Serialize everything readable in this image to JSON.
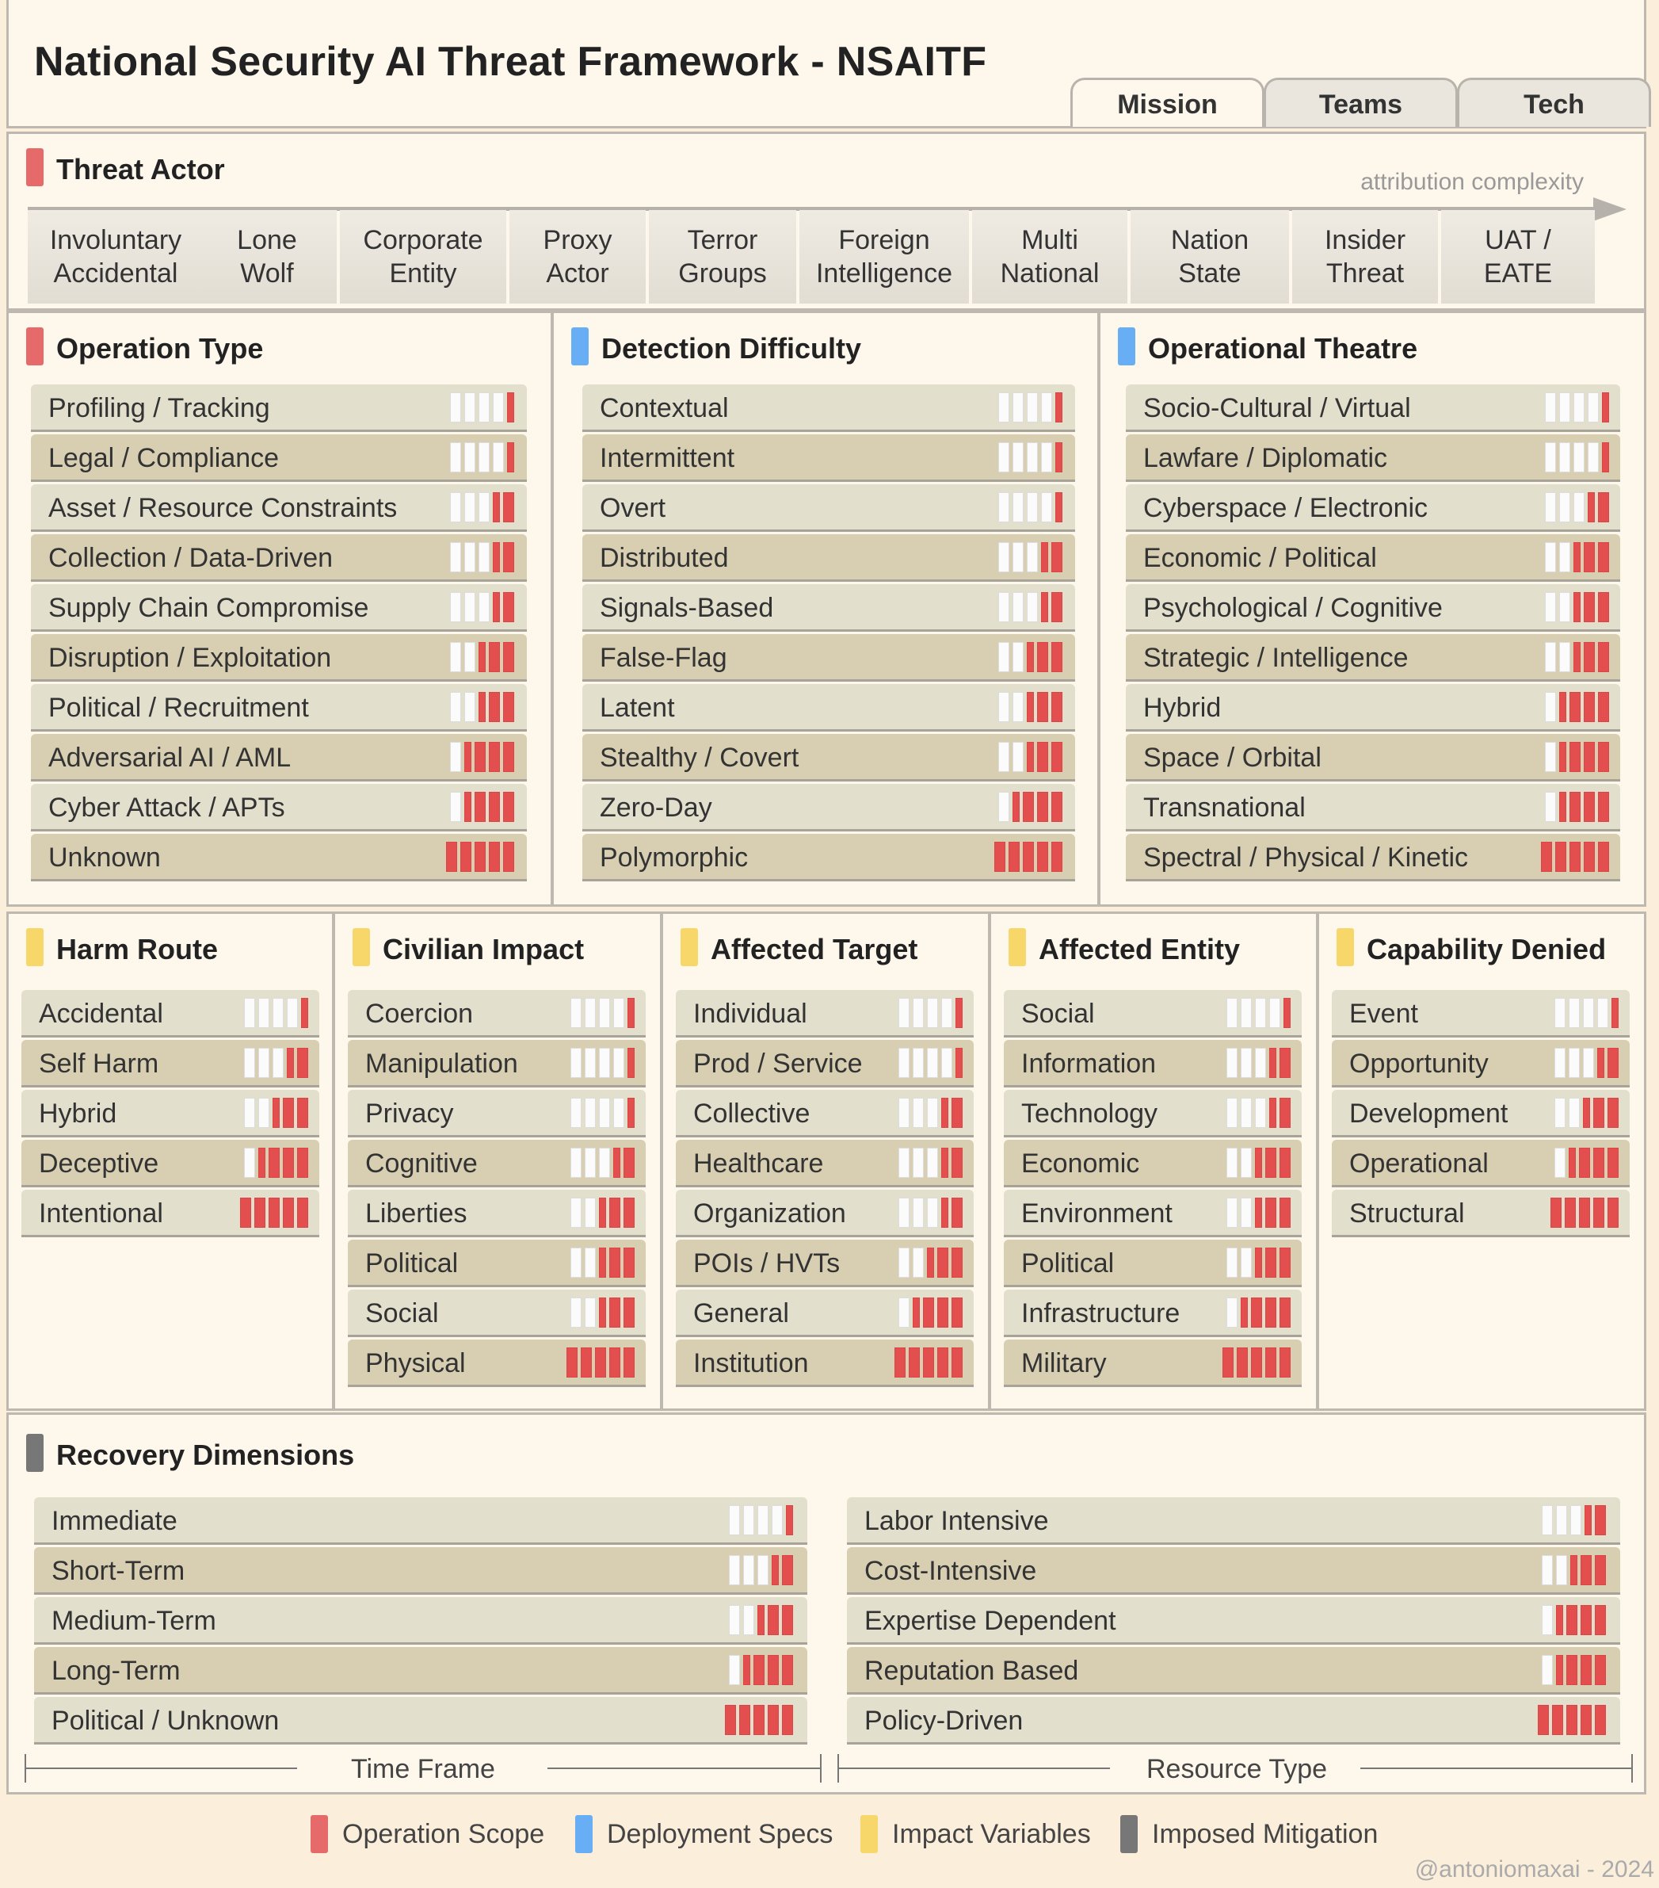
{
  "title": "National Security AI Threat Framework - NSAITF",
  "tabs": [
    "Mission",
    "Teams",
    "Tech"
  ],
  "threat_actor": {
    "title": "Threat Actor",
    "axis_label": "attribution complexity",
    "actors": [
      "Involuntary\nAccidental",
      "Lone\nWolf",
      "Corporate\nEntity",
      "Proxy\nActor",
      "Terror\nGroups",
      "Foreign\nIntelligence",
      "Multi\nNational",
      "Nation\nState",
      "Insider\nThreat",
      "UAT /\nEATE"
    ]
  },
  "sections": {
    "operation_type": {
      "title": "Operation Type",
      "color": "#e76a6a",
      "items": [
        {
          "label": "Profiling / Tracking",
          "level": 0.5
        },
        {
          "label": "Legal / Compliance",
          "level": 0.5
        },
        {
          "label": "Asset / Resource Constraints",
          "level": 1.5
        },
        {
          "label": "Collection / Data-Driven",
          "level": 1.5
        },
        {
          "label": "Supply Chain Compromise",
          "level": 1.5
        },
        {
          "label": "Disruption / Exploitation",
          "level": 2.5
        },
        {
          "label": "Political / Recruitment",
          "level": 2.5
        },
        {
          "label": "Adversarial AI / AML",
          "level": 3.5
        },
        {
          "label": "Cyber Attack / APTs",
          "level": 3.5
        },
        {
          "label": "Unknown",
          "level": 5
        }
      ]
    },
    "detection_difficulty": {
      "title": "Detection Difficulty",
      "color": "#67aef5",
      "items": [
        {
          "label": "Contextual",
          "level": 0.5
        },
        {
          "label": "Intermittent",
          "level": 0.5
        },
        {
          "label": "Overt",
          "level": 0.5
        },
        {
          "label": "Distributed",
          "level": 1.5
        },
        {
          "label": "Signals-Based",
          "level": 1.5
        },
        {
          "label": "False-Flag",
          "level": 2.5
        },
        {
          "label": "Latent",
          "level": 2.5
        },
        {
          "label": "Stealthy / Covert",
          "level": 2.5
        },
        {
          "label": "Zero-Day",
          "level": 3.5
        },
        {
          "label": "Polymorphic",
          "level": 5
        }
      ]
    },
    "operational_theatre": {
      "title": "Operational Theatre",
      "color": "#67aef5",
      "items": [
        {
          "label": "Socio-Cultural / Virtual",
          "level": 0.5
        },
        {
          "label": "Lawfare / Diplomatic",
          "level": 0.5
        },
        {
          "label": "Cyberspace / Electronic",
          "level": 1.5
        },
        {
          "label": "Economic / Political",
          "level": 2.5
        },
        {
          "label": "Psychological / Cognitive",
          "level": 2.5
        },
        {
          "label": "Strategic / Intelligence",
          "level": 2.5
        },
        {
          "label": "Hybrid",
          "level": 3.5
        },
        {
          "label": "Space / Orbital",
          "level": 3.5
        },
        {
          "label": "Transnational",
          "level": 3.5
        },
        {
          "label": "Spectral / Physical / Kinetic",
          "level": 5
        }
      ]
    },
    "harm_route": {
      "title": "Harm Route",
      "color": "#f7d66a",
      "items": [
        {
          "label": "Accidental",
          "level": 0.5
        },
        {
          "label": "Self Harm",
          "level": 1.5
        },
        {
          "label": "Hybrid",
          "level": 2.5
        },
        {
          "label": "Deceptive",
          "level": 3.5
        },
        {
          "label": "Intentional",
          "level": 5
        }
      ]
    },
    "civilian_impact": {
      "title": "Civilian Impact",
      "color": "#f7d66a",
      "items": [
        {
          "label": "Coercion",
          "level": 0.5
        },
        {
          "label": "Manipulation",
          "level": 0.5
        },
        {
          "label": "Privacy",
          "level": 0.5
        },
        {
          "label": "Cognitive",
          "level": 1.5
        },
        {
          "label": "Liberties",
          "level": 2.5
        },
        {
          "label": "Political",
          "level": 2.5
        },
        {
          "label": "Social",
          "level": 2.5
        },
        {
          "label": "Physical",
          "level": 5
        }
      ]
    },
    "affected_target": {
      "title": "Affected Target",
      "color": "#f7d66a",
      "items": [
        {
          "label": "Individual",
          "level": 0.5
        },
        {
          "label": "Prod / Service",
          "level": 0.5
        },
        {
          "label": "Collective",
          "level": 1.5
        },
        {
          "label": "Healthcare",
          "level": 1.5
        },
        {
          "label": "Organization",
          "level": 1.5
        },
        {
          "label": "POIs / HVTs",
          "level": 2.5
        },
        {
          "label": "General",
          "level": 3.5
        },
        {
          "label": "Institution",
          "level": 5
        }
      ]
    },
    "affected_entity": {
      "title": "Affected Entity",
      "color": "#f7d66a",
      "items": [
        {
          "label": "Social",
          "level": 0.5
        },
        {
          "label": "Information",
          "level": 1.5
        },
        {
          "label": "Technology",
          "level": 1.5
        },
        {
          "label": "Economic",
          "level": 2.5
        },
        {
          "label": "Environment",
          "level": 2.5
        },
        {
          "label": "Political",
          "level": 2.5
        },
        {
          "label": "Infrastructure",
          "level": 3.5
        },
        {
          "label": "Military",
          "level": 5
        }
      ]
    },
    "capability_denied": {
      "title": "Capability Denied",
      "color": "#f7d66a",
      "items": [
        {
          "label": "Event",
          "level": 0.5
        },
        {
          "label": "Opportunity",
          "level": 1.5
        },
        {
          "label": "Development",
          "level": 2.5
        },
        {
          "label": "Operational",
          "level": 3.5
        },
        {
          "label": "Structural",
          "level": 5
        }
      ]
    }
  },
  "recovery": {
    "title": "Recovery Dimensions",
    "color": "#777777",
    "time_frame": {
      "label": "Time Frame",
      "items": [
        {
          "label": "Immediate",
          "level": 0.5
        },
        {
          "label": "Short-Term",
          "level": 1.5
        },
        {
          "label": "Medium-Term",
          "level": 2.5
        },
        {
          "label": "Long-Term",
          "level": 3.5
        },
        {
          "label": "Political / Unknown",
          "level": 5
        }
      ]
    },
    "resource_type": {
      "label": "Resource Type",
      "items": [
        {
          "label": "Labor Intensive",
          "level": 1.5
        },
        {
          "label": "Cost-Intensive",
          "level": 2.5
        },
        {
          "label": "Expertise Dependent",
          "level": 3.5
        },
        {
          "label": "Reputation Based",
          "level": 3.5
        },
        {
          "label": "Policy-Driven",
          "level": 5
        }
      ]
    }
  },
  "legend": [
    {
      "label": "Operation Scope",
      "color": "#e76a6a"
    },
    {
      "label": "Deployment Specs",
      "color": "#67aef5"
    },
    {
      "label": "Impact Variables",
      "color": "#f7d66a"
    },
    {
      "label": "Imposed Mitigation",
      "color": "#777777"
    }
  ],
  "credit": "@antoniomaxai - 2024"
}
